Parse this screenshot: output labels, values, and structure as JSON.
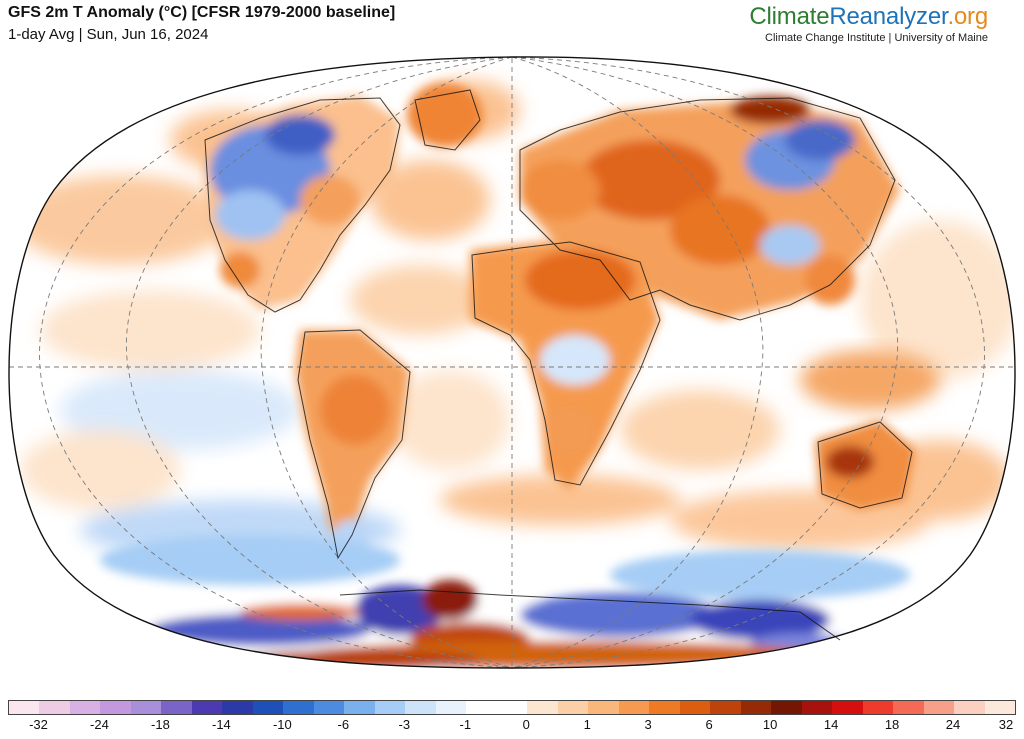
{
  "header": {
    "title": "GFS 2m T Anomaly (°C) [CFSR 1979-2000 baseline]",
    "subtitle": "1-day Avg | Sun, Jun 16, 2024"
  },
  "brand": {
    "name_part1": "Climate",
    "name_part2": "Reanalyzer",
    "name_part3": ".org",
    "subtitle": "Climate Change Institute | University of Maine",
    "colors": {
      "climate": "#2e7d32",
      "reanalyzer": "#1e73b8",
      "org": "#e58a1f"
    }
  },
  "map": {
    "projection": "Winkel Tripel / Robinson-like world",
    "variable": "2m temperature anomaly",
    "units": "°C",
    "regions": [
      {
        "name": "Siberia / Central Asia",
        "anomaly": "warm",
        "color": "#e06a10"
      },
      {
        "name": "North Africa / Middle East",
        "anomaly": "warm",
        "color": "#e8771b"
      },
      {
        "name": "Central Australia",
        "anomaly": "warm",
        "color": "#b53a08"
      },
      {
        "name": "Western Canada",
        "anomaly": "cool",
        "color": "#5f86d6"
      },
      {
        "name": "Antarctica (Wilkes / Ross)",
        "anomaly": "cold",
        "color": "#3d3fb3"
      },
      {
        "name": "Antarctic Peninsula",
        "anomaly": "very warm",
        "color": "#8b1a0a"
      },
      {
        "name": "Southern Ocean",
        "anomaly": "cool",
        "color": "#a9cdf5"
      }
    ]
  },
  "legend": {
    "colors": [
      "#fbe6ef",
      "#efcce6",
      "#d9b0e3",
      "#c398df",
      "#a98ed9",
      "#7a64c8",
      "#4c3bb0",
      "#2c3aa8",
      "#1f50b9",
      "#2f6fcf",
      "#4d8be0",
      "#7ab0ec",
      "#a6cdf5",
      "#cde3fa",
      "#e8f2fd",
      "#ffffff",
      "#ffffff",
      "#fde6cf",
      "#fcd0a6",
      "#fab77c",
      "#f79a4f",
      "#ef7a25",
      "#dc5d0f",
      "#bd430a",
      "#952b06",
      "#751503",
      "#a8120c",
      "#d50f0f",
      "#ef3b2c",
      "#f56a57",
      "#f7a089",
      "#fbd0c0",
      "#fde8dc"
    ],
    "labels": [
      "-32",
      "-24",
      "-18",
      "-14",
      "-10",
      "-6",
      "-3",
      "-1",
      "0",
      "1",
      "3",
      "6",
      "10",
      "14",
      "18",
      "24",
      "32"
    ]
  }
}
